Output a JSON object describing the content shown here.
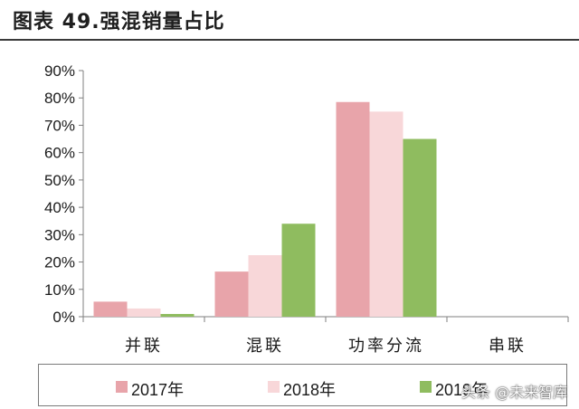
{
  "header": {
    "title": "图表 49.强混销量占比"
  },
  "chart_data": {
    "type": "bar",
    "categories": [
      "并联",
      "混联",
      "功率分流",
      "串联"
    ],
    "series": [
      {
        "name": "2017年",
        "values": [
          5.5,
          16.5,
          78.5,
          0
        ],
        "color": "#e8a4aa"
      },
      {
        "name": "2018年",
        "values": [
          3,
          22.5,
          75,
          0
        ],
        "color": "#f8d7d9"
      },
      {
        "name": "2019年",
        "values": [
          1,
          34,
          65,
          0
        ],
        "color": "#8fbc5f"
      }
    ],
    "yticks": [
      "0%",
      "10%",
      "20%",
      "30%",
      "40%",
      "50%",
      "60%",
      "70%",
      "80%",
      "90%"
    ],
    "ylim": [
      0,
      90
    ],
    "grid": false,
    "legend_position": "bottom"
  },
  "legend": [
    "2017年",
    "2018年",
    "2019年"
  ],
  "watermark": "头条 @未来智库"
}
